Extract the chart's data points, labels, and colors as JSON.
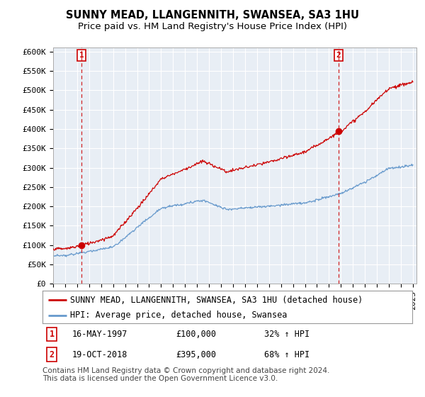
{
  "title": "SUNNY MEAD, LLANGENNITH, SWANSEA, SA3 1HU",
  "subtitle": "Price paid vs. HM Land Registry's House Price Index (HPI)",
  "ylim": [
    0,
    600000
  ],
  "yticks": [
    0,
    50000,
    100000,
    150000,
    200000,
    250000,
    300000,
    350000,
    400000,
    450000,
    500000,
    550000,
    600000
  ],
  "ytick_labels": [
    "£0",
    "£50K",
    "£100K",
    "£150K",
    "£200K",
    "£250K",
    "£300K",
    "£350K",
    "£400K",
    "£450K",
    "£500K",
    "£550K",
    "£600K"
  ],
  "sale1_year": 1997.37,
  "sale1_price": 100000,
  "sale1_label": "1",
  "sale1_date": "16-MAY-1997",
  "sale1_pct": "32% ↑ HPI",
  "sale2_year": 2018.79,
  "sale2_price": 395000,
  "sale2_label": "2",
  "sale2_date": "19-OCT-2018",
  "sale2_pct": "68% ↑ HPI",
  "line_color_red": "#cc0000",
  "line_color_blue": "#6699cc",
  "vline_color": "#cc0000",
  "marker_color_red": "#cc0000",
  "legend_line1": "SUNNY MEAD, LLANGENNITH, SWANSEA, SA3 1HU (detached house)",
  "legend_line2": "HPI: Average price, detached house, Swansea",
  "footnote1": "Contains HM Land Registry data © Crown copyright and database right 2024.",
  "footnote2": "This data is licensed under the Open Government Licence v3.0.",
  "background_color": "#ffffff",
  "chart_bg_color": "#e8eef5",
  "grid_color": "#ffffff",
  "title_fontsize": 10.5,
  "subtitle_fontsize": 9.5,
  "tick_fontsize": 8,
  "legend_fontsize": 8.5,
  "footnote_fontsize": 7.5
}
